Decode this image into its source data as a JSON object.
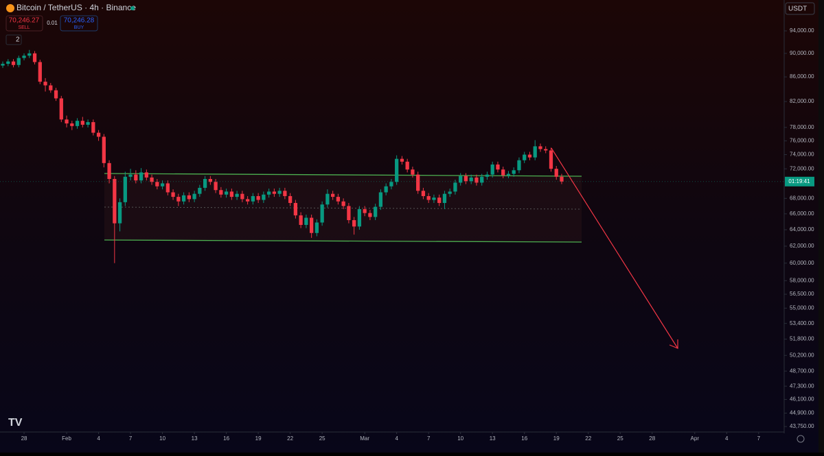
{
  "chart_data": {
    "type": "candlestick",
    "title": "Bitcoin / TetherUS · 4h · Binance",
    "log_scale": true,
    "grid": false,
    "up_color": "#089981",
    "down_color": "#f23645",
    "ylim": [
      43290,
      99780
    ],
    "yticks": [
      {
        "value": 94000,
        "label": "94,000.00"
      },
      {
        "value": 90000,
        "label": "90,000.00"
      },
      {
        "value": 86000,
        "label": "86,000.00"
      },
      {
        "value": 82000,
        "label": "82,000.00"
      },
      {
        "value": 78000,
        "label": "78,000.00"
      },
      {
        "value": 76000,
        "label": "76,000.00"
      },
      {
        "value": 74000,
        "label": "74,000.00"
      },
      {
        "value": 72000,
        "label": "72,000.00"
      },
      {
        "value": 68000,
        "label": "68,000.00"
      },
      {
        "value": 66000,
        "label": "66,000.00"
      },
      {
        "value": 64000,
        "label": "64,000.00"
      },
      {
        "value": 62000,
        "label": "62,000.00"
      },
      {
        "value": 60000,
        "label": "60,000.00"
      },
      {
        "value": 58000,
        "label": "58,000.00"
      },
      {
        "value": 56500,
        "label": "56,500.00"
      },
      {
        "value": 55000,
        "label": "55,000.00"
      },
      {
        "value": 53400,
        "label": "53,400.00"
      },
      {
        "value": 51800,
        "label": "51,800.00"
      },
      {
        "value": 50200,
        "label": "50,200.00"
      },
      {
        "value": 48700,
        "label": "48,700.00"
      },
      {
        "value": 47300,
        "label": "47,300.00"
      },
      {
        "value": 46100,
        "label": "46,100.00"
      },
      {
        "value": 44900,
        "label": "44,900.00"
      },
      {
        "value": 43750,
        "label": "43,750.00"
      }
    ],
    "xlim": [
      -2.26,
      71.4
    ],
    "xticks": [
      {
        "value": 0,
        "label": "28"
      },
      {
        "value": 4,
        "label": "Feb"
      },
      {
        "value": 7,
        "label": "4"
      },
      {
        "value": 10,
        "label": "7"
      },
      {
        "value": 13,
        "label": "10"
      },
      {
        "value": 16,
        "label": "13"
      },
      {
        "value": 19,
        "label": "16"
      },
      {
        "value": 22,
        "label": "19"
      },
      {
        "value": 25,
        "label": "22"
      },
      {
        "value": 28,
        "label": "25"
      },
      {
        "value": 32,
        "label": "Mar"
      },
      {
        "value": 35,
        "label": "4"
      },
      {
        "value": 38,
        "label": "7"
      },
      {
        "value": 41,
        "label": "10"
      },
      {
        "value": 44,
        "label": "13"
      },
      {
        "value": 47,
        "label": "16"
      },
      {
        "value": 50,
        "label": "19"
      },
      {
        "value": 53,
        "label": "22"
      },
      {
        "value": 56,
        "label": "25"
      },
      {
        "value": 59,
        "label": "28"
      },
      {
        "value": 63,
        "label": "Apr"
      },
      {
        "value": 66,
        "label": "4"
      },
      {
        "value": 69,
        "label": "7"
      }
    ],
    "x": [
      -2,
      -1.5,
      -1,
      -0.5,
      0,
      0.5,
      1,
      1.5,
      2,
      2.5,
      3,
      3.5,
      4,
      4.5,
      5,
      5.5,
      6,
      6.5,
      7,
      7.5,
      8,
      8.5,
      9,
      9.5,
      10,
      10.5,
      11,
      11.5,
      12,
      12.5,
      13,
      13.5,
      14,
      14.5,
      15,
      15.5,
      16,
      16.5,
      17,
      17.5,
      18,
      18.5,
      19,
      19.5,
      20,
      20.5,
      21,
      21.5,
      22,
      22.5,
      23,
      23.5,
      24,
      24.5,
      25,
      25.5,
      26,
      26.5,
      27,
      27.5,
      28,
      28.5,
      29,
      29.5,
      30,
      30.5,
      31,
      31.5,
      32,
      32.5,
      33,
      33.5,
      34,
      34.5,
      35,
      35.5,
      36,
      36.5,
      37,
      37.5,
      38,
      38.5,
      39,
      39.5,
      40,
      40.5,
      41,
      41.5,
      42,
      42.5,
      43,
      43.5,
      44,
      44.5,
      45,
      45.5,
      46,
      46.5,
      47,
      47.5,
      48,
      48.5,
      49,
      49.5,
      50,
      50.5
    ],
    "ohlc": [
      [
        87900,
        88600,
        87500,
        88200
      ],
      [
        88200,
        89000,
        87800,
        88600
      ],
      [
        88600,
        89000,
        87600,
        88000
      ],
      [
        88000,
        89600,
        87600,
        89200
      ],
      [
        89200,
        90000,
        88800,
        89600
      ],
      [
        89600,
        90600,
        89200,
        90000
      ],
      [
        90000,
        90400,
        88100,
        88500
      ],
      [
        88500,
        88900,
        84800,
        85200
      ],
      [
        85200,
        85800,
        83600,
        84600
      ],
      [
        84600,
        85000,
        83400,
        83800
      ],
      [
        83800,
        84200,
        82100,
        82500
      ],
      [
        82500,
        82900,
        78800,
        79200
      ],
      [
        79200,
        79800,
        78000,
        78600
      ],
      [
        78600,
        79000,
        77600,
        78200
      ],
      [
        78200,
        79400,
        77800,
        79000
      ],
      [
        79000,
        79600,
        78000,
        78400
      ],
      [
        78400,
        79200,
        78000,
        78800
      ],
      [
        78800,
        79200,
        76800,
        77200
      ],
      [
        77200,
        77600,
        76000,
        76600
      ],
      [
        76600,
        77000,
        72200,
        72800
      ],
      [
        72800,
        73200,
        70000,
        70600
      ],
      [
        70600,
        71000,
        60000,
        64800
      ],
      [
        64800,
        68000,
        63800,
        67500
      ],
      [
        67500,
        71600,
        67000,
        70900
      ],
      [
        70900,
        72000,
        70400,
        71200
      ],
      [
        71200,
        71800,
        70000,
        70400
      ],
      [
        70400,
        72100,
        70000,
        71500
      ],
      [
        71500,
        71900,
        70400,
        70800
      ],
      [
        70800,
        71200,
        69800,
        70200
      ],
      [
        70200,
        70600,
        69200,
        69600
      ],
      [
        69600,
        70400,
        69200,
        70000
      ],
      [
        70000,
        70400,
        68400,
        68800
      ],
      [
        68800,
        69200,
        67800,
        68200
      ],
      [
        68200,
        68600,
        67000,
        67600
      ],
      [
        67600,
        68800,
        67200,
        68400
      ],
      [
        68400,
        68800,
        67500,
        67900
      ],
      [
        67900,
        69000,
        67500,
        68600
      ],
      [
        68600,
        69800,
        68200,
        69400
      ],
      [
        69400,
        71000,
        69000,
        70600
      ],
      [
        70600,
        71000,
        69800,
        70200
      ],
      [
        70200,
        70600,
        68700,
        69100
      ],
      [
        69100,
        69500,
        68100,
        68500
      ],
      [
        68500,
        69300,
        68100,
        68900
      ],
      [
        68900,
        69300,
        67800,
        68200
      ],
      [
        68200,
        69000,
        67800,
        68600
      ],
      [
        68600,
        69000,
        67500,
        67900
      ],
      [
        67900,
        68300,
        67200,
        67600
      ],
      [
        67600,
        68700,
        67200,
        68300
      ],
      [
        68300,
        68700,
        67400,
        67800
      ],
      [
        67800,
        68900,
        67400,
        68500
      ],
      [
        68500,
        69300,
        68100,
        68900
      ],
      [
        68900,
        69300,
        68200,
        68600
      ],
      [
        68600,
        69400,
        68200,
        69000
      ],
      [
        69000,
        69400,
        67900,
        68300
      ],
      [
        68300,
        68700,
        67000,
        67400
      ],
      [
        67400,
        67800,
        65400,
        65800
      ],
      [
        65800,
        66200,
        64200,
        64600
      ],
      [
        64600,
        65900,
        64200,
        65500
      ],
      [
        65500,
        65900,
        63000,
        63600
      ],
      [
        63600,
        65300,
        63200,
        64900
      ],
      [
        64900,
        67600,
        64500,
        67200
      ],
      [
        67200,
        69200,
        66800,
        68600
      ],
      [
        68600,
        69000,
        67800,
        68200
      ],
      [
        68200,
        68600,
        67200,
        67600
      ],
      [
        67600,
        68000,
        66600,
        67000
      ],
      [
        67000,
        67400,
        64800,
        65200
      ],
      [
        65200,
        65600,
        63400,
        64400
      ],
      [
        64400,
        67000,
        64000,
        66600
      ],
      [
        66600,
        67000,
        65700,
        66100
      ],
      [
        66100,
        66500,
        65200,
        65600
      ],
      [
        65600,
        67300,
        65200,
        66900
      ],
      [
        66900,
        69200,
        66500,
        68800
      ],
      [
        68800,
        70000,
        68400,
        69600
      ],
      [
        69600,
        70600,
        69200,
        70200
      ],
      [
        70200,
        73900,
        69800,
        73400
      ],
      [
        73400,
        73800,
        72600,
        73000
      ],
      [
        73000,
        73400,
        71500,
        71900
      ],
      [
        71900,
        72300,
        70800,
        71200
      ],
      [
        71200,
        71600,
        68600,
        69000
      ],
      [
        69000,
        69400,
        67900,
        68300
      ],
      [
        68300,
        68700,
        67400,
        67800
      ],
      [
        67800,
        68500,
        67400,
        68100
      ],
      [
        68100,
        68500,
        67000,
        67400
      ],
      [
        67400,
        69000,
        66600,
        68600
      ],
      [
        68600,
        69300,
        68200,
        68900
      ],
      [
        68900,
        70500,
        68500,
        70100
      ],
      [
        70100,
        71400,
        69700,
        71000
      ],
      [
        71000,
        71400,
        69900,
        70300
      ],
      [
        70300,
        71200,
        69900,
        70800
      ],
      [
        70800,
        71200,
        69700,
        70100
      ],
      [
        70100,
        71300,
        69700,
        70900
      ],
      [
        70900,
        71600,
        70500,
        71200
      ],
      [
        71200,
        73000,
        70800,
        72600
      ],
      [
        72600,
        73000,
        71500,
        71900
      ],
      [
        71900,
        72300,
        70700,
        71100
      ],
      [
        71100,
        71700,
        70700,
        71300
      ],
      [
        71300,
        72200,
        70900,
        71800
      ],
      [
        71800,
        73600,
        71400,
        73200
      ],
      [
        73200,
        74400,
        72800,
        74000
      ],
      [
        74000,
        74400,
        73200,
        73600
      ],
      [
        73600,
        76100,
        73200,
        75200
      ],
      [
        75200,
        75600,
        74400,
        74800
      ],
      [
        74800,
        75200,
        74200,
        74600
      ],
      [
        74600,
        75000,
        71600,
        72000
      ],
      [
        72000,
        72400,
        70500,
        70900
      ],
      [
        70900,
        71300,
        69900,
        70246
      ]
    ],
    "countdown": "01:19:41",
    "currency": "USDT"
  },
  "trade_panel": {
    "sell_price": "70,246.27",
    "sell_label": "SELL",
    "spread": "0.01",
    "buy_price": "70,246.28",
    "buy_label": "BUY",
    "indicators_count": "2"
  }
}
